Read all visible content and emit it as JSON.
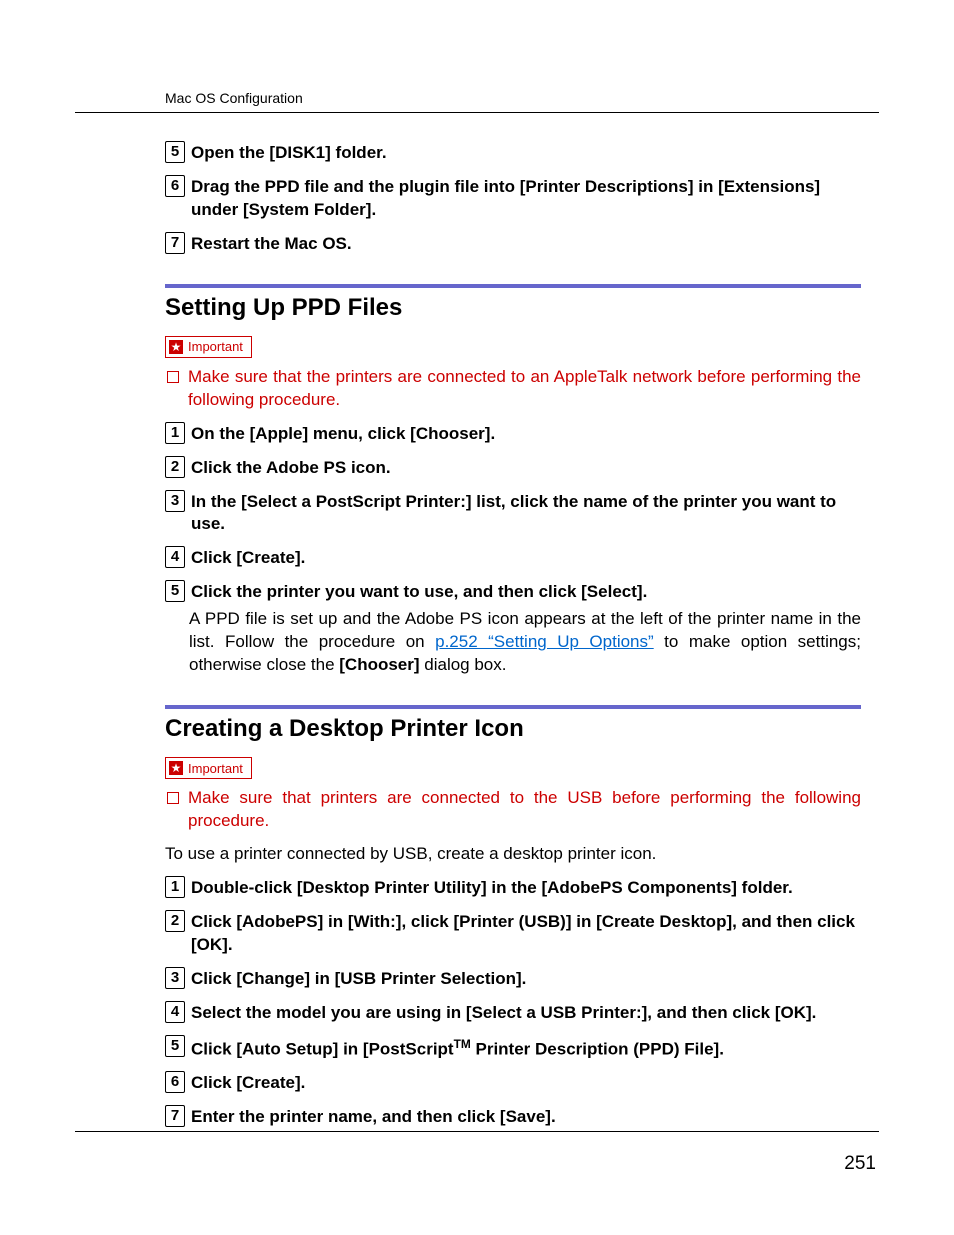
{
  "colors": {
    "accent_rule": "#6666cc",
    "important": "#cc0000",
    "link": "#0066cc",
    "text": "#000000",
    "bg": "#ffffff"
  },
  "typography": {
    "body_pt": 17,
    "h2_pt": 24,
    "header_pt": 14,
    "pagenum_pt": 19,
    "font": "Arial"
  },
  "header": {
    "running": "Mac OS Configuration"
  },
  "page_number": "251",
  "top_steps": [
    {
      "n": "5",
      "segments": [
        {
          "t": "Open the "
        },
        {
          "t": "[DISK1]",
          "ui": true
        },
        {
          "t": " folder."
        }
      ]
    },
    {
      "n": "6",
      "segments": [
        {
          "t": "Drag the PPD file and the plugin file into "
        },
        {
          "t": "[Printer Descriptions]",
          "ui": true
        },
        {
          "t": " in "
        },
        {
          "t": "[Extensions]",
          "ui": true
        },
        {
          "t": " under "
        },
        {
          "t": "[System Folder]",
          "ui": true
        },
        {
          "t": "."
        }
      ]
    },
    {
      "n": "7",
      "segments": [
        {
          "t": "Restart the Mac OS."
        }
      ]
    }
  ],
  "section1": {
    "title": "Setting Up PPD Files",
    "important_label": "Important",
    "note": "Make sure that the printers are connected to an AppleTalk network before performing the following procedure.",
    "steps": [
      {
        "n": "1",
        "segments": [
          {
            "t": "On the "
          },
          {
            "t": "[Apple]",
            "ui": true
          },
          {
            "t": " menu, click "
          },
          {
            "t": "[Chooser]",
            "ui": true
          },
          {
            "t": "."
          }
        ]
      },
      {
        "n": "2",
        "segments": [
          {
            "t": "Click the Adobe PS icon."
          }
        ]
      },
      {
        "n": "3",
        "segments": [
          {
            "t": "In the "
          },
          {
            "t": "[Select a PostScript Printer:]",
            "ui": true
          },
          {
            "t": " list, click the name of the printer you want to use."
          }
        ]
      },
      {
        "n": "4",
        "segments": [
          {
            "t": "Click "
          },
          {
            "t": "[Create]",
            "ui": true
          },
          {
            "t": "."
          }
        ]
      },
      {
        "n": "5",
        "segments": [
          {
            "t": "Click the printer you want to use, and then click "
          },
          {
            "t": "[Select]",
            "ui": true
          },
          {
            "t": "."
          }
        ],
        "detail_segments": [
          {
            "t": "A PPD file is set up and the Adobe PS icon appears at the left of the printer name in the list. Follow the procedure on "
          },
          {
            "t": "p.252 “Setting Up Options”",
            "link": true
          },
          {
            "t": " to make option settings; otherwise close the "
          },
          {
            "t": "[Chooser]",
            "ui": true
          },
          {
            "t": " dialog box."
          }
        ]
      }
    ]
  },
  "section2": {
    "title": "Creating a Desktop Printer Icon",
    "important_label": "Important",
    "note": "Make sure that printers are connected to the USB before performing the following procedure.",
    "intro": "To use a printer connected by USB, create a desktop printer icon.",
    "steps": [
      {
        "n": "1",
        "segments": [
          {
            "t": "Double-click "
          },
          {
            "t": "[Desktop Printer Utility]",
            "ui": true
          },
          {
            "t": " in the "
          },
          {
            "t": "[AdobePS Components]",
            "ui": true
          },
          {
            "t": " folder."
          }
        ]
      },
      {
        "n": "2",
        "segments": [
          {
            "t": "Click "
          },
          {
            "t": "[AdobePS]",
            "ui": true
          },
          {
            "t": " in "
          },
          {
            "t": "[With:]",
            "ui": true
          },
          {
            "t": ", click "
          },
          {
            "t": "[Printer (USB)]",
            "ui": true
          },
          {
            "t": " in "
          },
          {
            "t": "[Create Desktop]",
            "ui": true
          },
          {
            "t": ", and then click "
          },
          {
            "t": "[OK]",
            "ui": true
          },
          {
            "t": "."
          }
        ]
      },
      {
        "n": "3",
        "segments": [
          {
            "t": "Click "
          },
          {
            "t": "[Change]",
            "ui": true
          },
          {
            "t": " in "
          },
          {
            "t": "[USB Printer Selection]",
            "ui": true
          },
          {
            "t": "."
          }
        ]
      },
      {
        "n": "4",
        "segments": [
          {
            "t": "Select the model you are using in "
          },
          {
            "t": "[Select a USB Printer:]",
            "ui": true
          },
          {
            "t": ", and then click "
          },
          {
            "t": "[OK]",
            "ui": true
          },
          {
            "t": "."
          }
        ]
      },
      {
        "n": "5",
        "segments": [
          {
            "t": "Click "
          },
          {
            "t": "[Auto Setup]",
            "ui": true
          },
          {
            "t": " in "
          },
          {
            "t": "[PostScript",
            "ui": true
          },
          {
            "t": "TM",
            "ui": true,
            "sup": true
          },
          {
            "t": " Printer Description (PPD) File]",
            "ui": true
          },
          {
            "t": "."
          }
        ]
      },
      {
        "n": "6",
        "segments": [
          {
            "t": "Click "
          },
          {
            "t": "[Create]",
            "ui": true
          },
          {
            "t": "."
          }
        ]
      },
      {
        "n": "7",
        "segments": [
          {
            "t": "Enter the printer name, and then click "
          },
          {
            "t": "[Save]",
            "ui": true
          },
          {
            "t": "."
          }
        ]
      }
    ]
  }
}
